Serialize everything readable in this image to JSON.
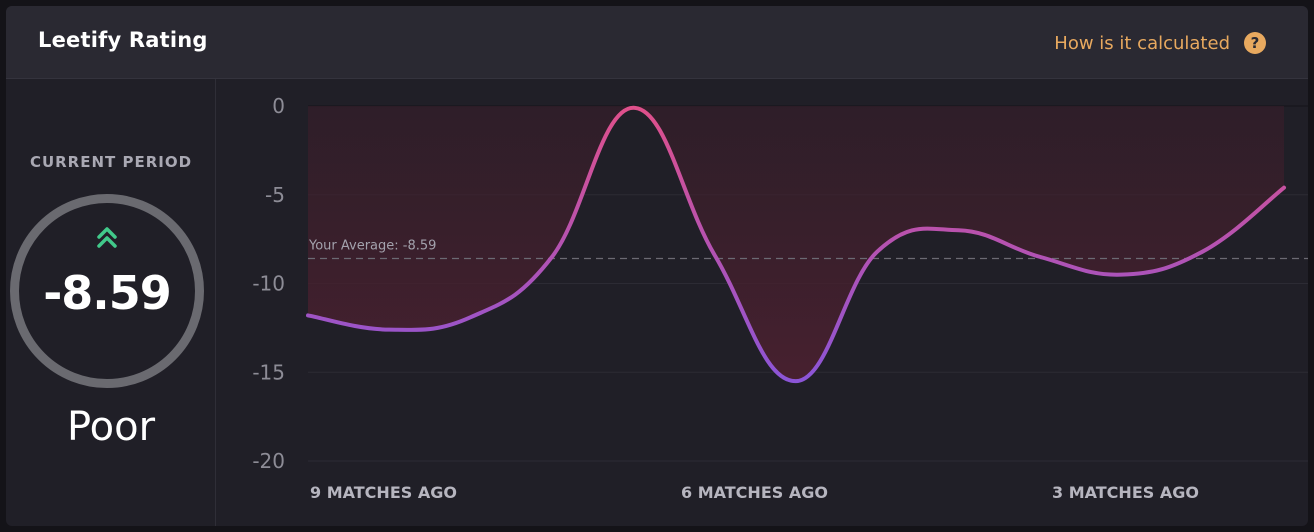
{
  "header": {
    "title": "Leetify Rating",
    "how_link": "How is it calculated",
    "help_icon": "?"
  },
  "current": {
    "label": "CURRENT PERIOD",
    "value": "-8.59",
    "grade": "Poor",
    "trend_icon": "double-chevron-up-icon"
  },
  "colors": {
    "accent_link": "#e8a95f",
    "trend_green": "#41c98a",
    "line_start": "#e0508a",
    "line_end": "#8a55d8"
  },
  "chart_data": {
    "type": "line",
    "title": "",
    "xlabel": "",
    "ylabel": "",
    "ylim": [
      -20,
      0
    ],
    "yticks": [
      "0",
      "-5",
      "-10",
      "-15",
      "-20"
    ],
    "x_tick_labels": [
      "9 MATCHES AGO",
      "6 MATCHES AGO",
      "3 MATCHES AGO"
    ],
    "average": {
      "label": "Your Average: -8.59",
      "value": -8.59
    },
    "series": [
      {
        "values": [
          -11.8,
          -12.6,
          -11.9,
          -8.5,
          -0.1,
          -8.4,
          -15.5,
          -8.2,
          -7.0,
          -8.5,
          -9.5,
          -8.2,
          -4.6
        ]
      }
    ]
  }
}
